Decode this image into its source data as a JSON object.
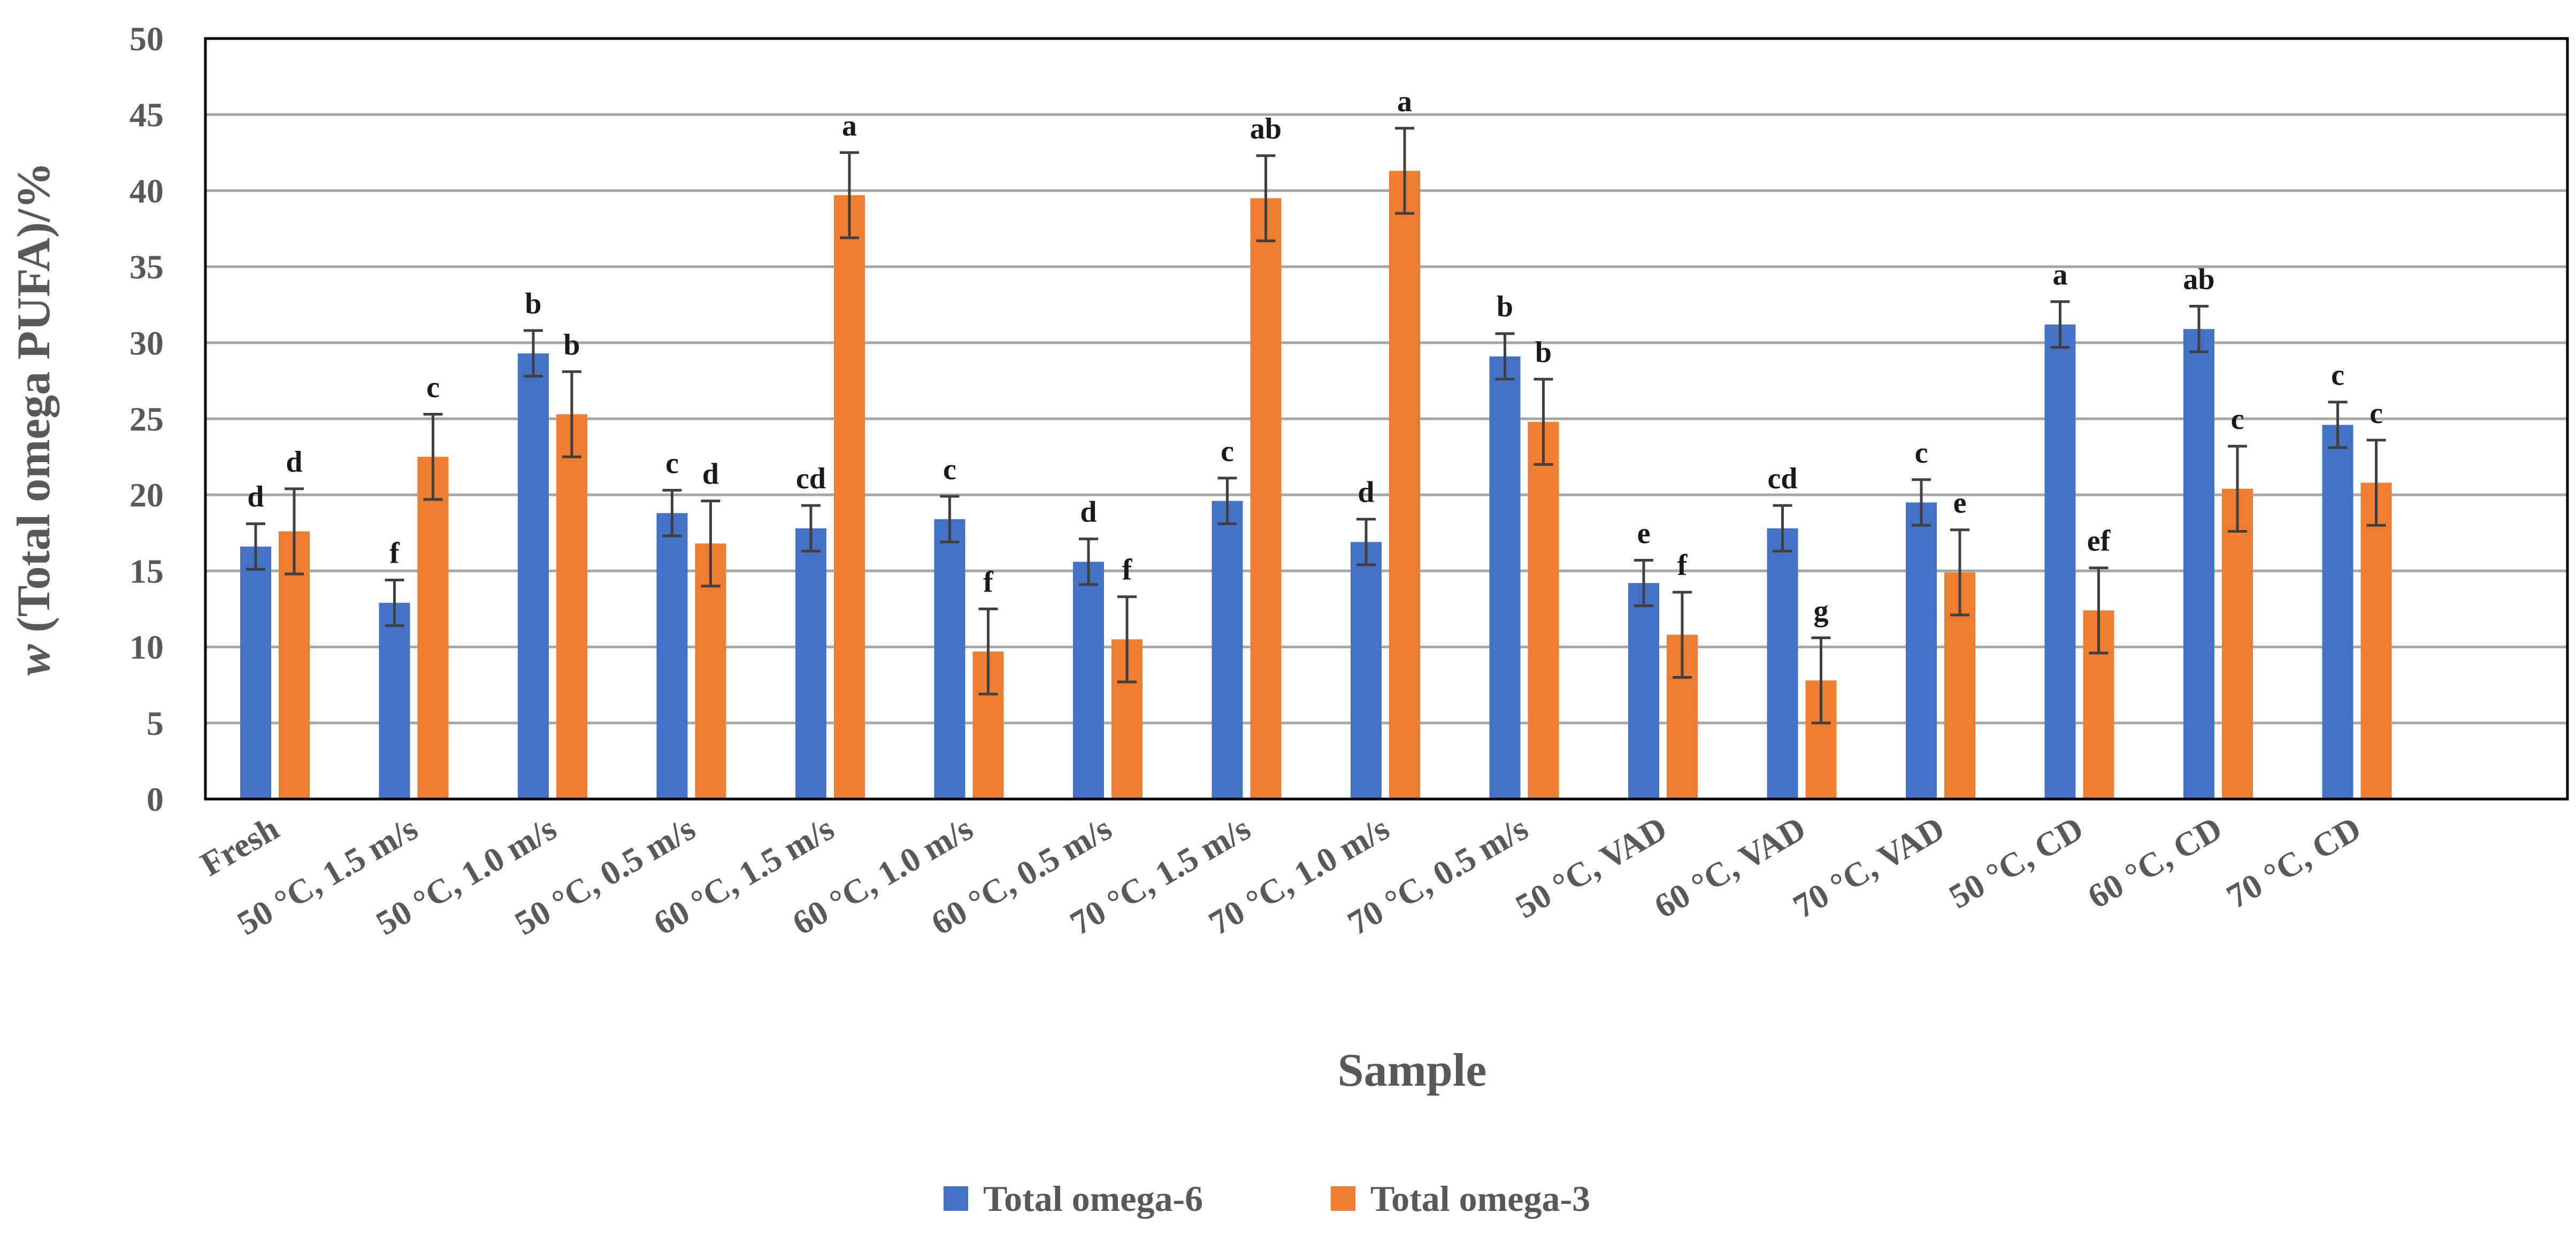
{
  "chart_data": {
    "type": "bar",
    "title": "",
    "xlabel": "Sample",
    "ylabel_prefix": "w",
    "ylabel": " (Total omega PUFA)/%",
    "ylim": [
      0,
      50
    ],
    "yticks": [
      0,
      5,
      10,
      15,
      20,
      25,
      30,
      35,
      40,
      45,
      50
    ],
    "grid": "horizontal",
    "legend_position": "bottom-center",
    "categories": [
      "Fresh",
      "50 °C, 1.5 m/s",
      "50 °C, 1.0 m/s",
      "50 °C, 0.5 m/s",
      "60 °C, 1.5 m/s",
      "60 °C, 1.0 m/s",
      "60 °C, 0.5 m/s",
      "70 °C, 1.5 m/s",
      "70 °C, 1.0 m/s",
      "70 °C, 0.5 m/s",
      "50 °C, VAD",
      "60 °C, VAD",
      "70 °C, VAD",
      "50 °C, CD",
      "60 °C, CD",
      "70 °C, CD"
    ],
    "series": [
      {
        "name": "Total omega-6",
        "color": "#4472C4",
        "values": [
          16.6,
          12.9,
          29.3,
          18.8,
          17.8,
          18.4,
          15.6,
          19.6,
          16.9,
          29.1,
          14.2,
          17.8,
          19.5,
          31.2,
          30.9,
          24.6
        ],
        "errors": [
          1.5,
          1.5,
          1.5,
          1.5,
          1.5,
          1.5,
          1.5,
          1.5,
          1.5,
          1.5,
          1.5,
          1.5,
          1.5,
          1.5,
          1.5,
          1.5
        ],
        "labels": [
          "d",
          "f",
          "b",
          "c",
          "cd",
          "c",
          "d",
          "c",
          "d",
          "b",
          "e",
          "cd",
          "c",
          "a",
          "ab",
          "c"
        ]
      },
      {
        "name": "Total omega-3",
        "color": "#ED7D31",
        "values": [
          17.6,
          22.5,
          25.3,
          16.8,
          39.7,
          9.7,
          10.5,
          39.5,
          41.3,
          24.8,
          10.8,
          7.8,
          14.9,
          12.4,
          20.4,
          20.8
        ],
        "errors": [
          2.8,
          2.8,
          2.8,
          2.8,
          2.8,
          2.8,
          2.8,
          2.8,
          2.8,
          2.8,
          2.8,
          2.8,
          2.8,
          2.8,
          2.8,
          2.8
        ],
        "labels": [
          "d",
          "c",
          "b",
          "d",
          "a",
          "f",
          "f",
          "ab",
          "a",
          "b",
          "f",
          "g",
          "e",
          "ef",
          "c",
          "c"
        ]
      }
    ]
  }
}
